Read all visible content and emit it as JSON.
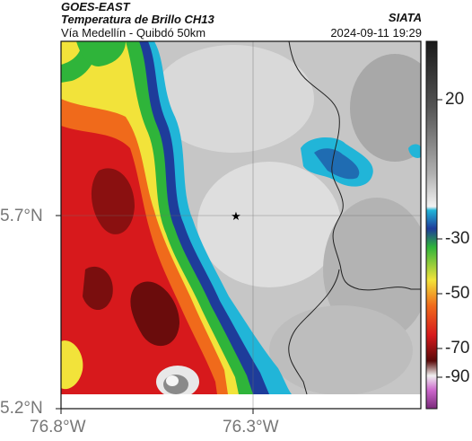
{
  "header": {
    "title": "GOES-EAST",
    "subtitle": "Temperatura de Brillo CH13",
    "location": "Vía Medellín - Quibdó 50km",
    "brand": "SIATA",
    "timestamp": "2024-09-11 19:29"
  },
  "axes": {
    "x_ticks": [
      "76.8°W",
      "76.3°W"
    ],
    "y_ticks": [
      "5.7°N",
      "5.2°N"
    ]
  },
  "colorbar": {
    "ticks": [
      "20",
      "-30",
      "-50",
      "-70",
      "-90"
    ],
    "colors": {
      "hot": "#1a1a1a",
      "mid_gray": "#9a9a9a",
      "light": "#f2f2f2",
      "cyan": "#21b5d8",
      "blue": "#1e3c9a",
      "green": "#2fb43a",
      "yellow": "#f2e33a",
      "orange": "#f06a1b",
      "red": "#d7191c",
      "dark_red": "#5a0a0a",
      "magenta": "#9a3a9a"
    }
  },
  "marker": {
    "icon": "star-icon"
  }
}
